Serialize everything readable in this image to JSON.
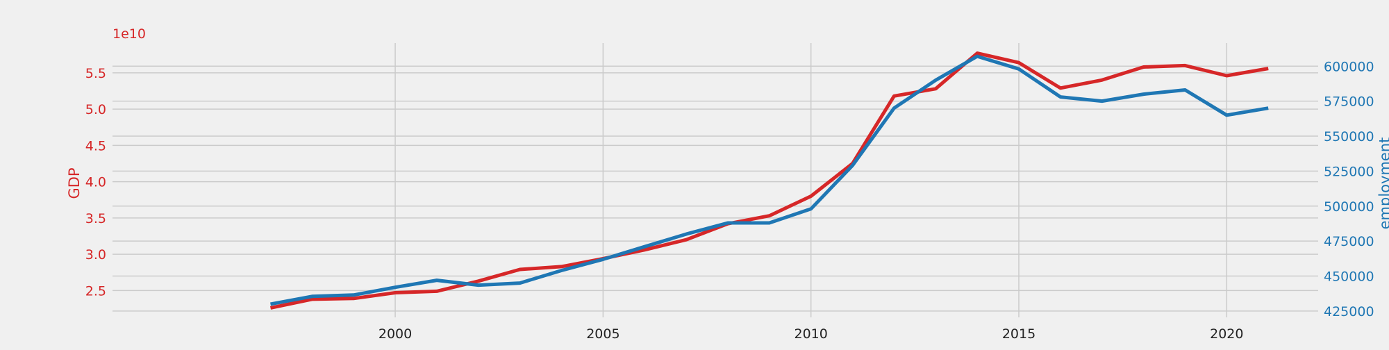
{
  "chart_data": {
    "type": "line",
    "title": "",
    "xlabel": "",
    "x": [
      1997,
      1998,
      1999,
      2000,
      2001,
      2002,
      2003,
      2004,
      2005,
      2006,
      2007,
      2008,
      2009,
      2010,
      2011,
      2012,
      2013,
      2014,
      2015,
      2016,
      2017,
      2018,
      2019,
      2020,
      2021
    ],
    "xlim": [
      1993.2,
      2022.2
    ],
    "xticks": [
      2000,
      2005,
      2010,
      2015,
      2020
    ],
    "xtick_labels": [
      "2000",
      "2005",
      "2010",
      "2015",
      "2020"
    ],
    "grid": true,
    "series": [
      {
        "name": "GDP",
        "axis": "left",
        "color": "#d62728",
        "values": [
          22600000000.0,
          23800000000.0,
          23900000000.0,
          24700000000.0,
          24900000000.0,
          26300000000.0,
          27900000000.0,
          28300000000.0,
          29400000000.0,
          30600000000.0,
          32000000000.0,
          34200000000.0,
          35300000000.0,
          38000000000.0,
          42500000000.0,
          51800000000.0,
          52800000000.0,
          57700000000.0,
          56400000000.0,
          52900000000.0,
          54000000000.0,
          55800000000.0,
          56000000000.0,
          54600000000.0,
          55600000000.0
        ]
      },
      {
        "name": "employment",
        "axis": "right",
        "color": "#1f77b4",
        "values": [
          430000,
          435500,
          436500,
          442000,
          447000,
          443500,
          445000,
          454000,
          462000,
          471000,
          480000,
          488000,
          488000,
          498000,
          529000,
          570000,
          590000,
          607000,
          598000,
          578000,
          575000,
          580000,
          583000,
          565000,
          570000
        ]
      }
    ],
    "y_left": {
      "label": "GDP",
      "offset_text": "1e10",
      "ylim": [
        21300000000.0,
        59100000000.0
      ],
      "ticks": [
        25000000000.0,
        30000000000.0,
        35000000000.0,
        40000000000.0,
        45000000000.0,
        50000000000.0,
        55000000000.0
      ],
      "tick_labels": [
        "2.5",
        "3.0",
        "3.5",
        "4.0",
        "4.5",
        "5.0",
        "5.5"
      ],
      "color": "#d62728"
    },
    "y_right": {
      "label": "employment",
      "ylim": [
        420500,
        616500
      ],
      "ticks": [
        425000,
        450000,
        475000,
        500000,
        525000,
        550000,
        575000,
        600000
      ],
      "tick_labels": [
        "425000",
        "450000",
        "475000",
        "500000",
        "525000",
        "550000",
        "575000",
        "600000"
      ],
      "color": "#1f77b4"
    }
  }
}
